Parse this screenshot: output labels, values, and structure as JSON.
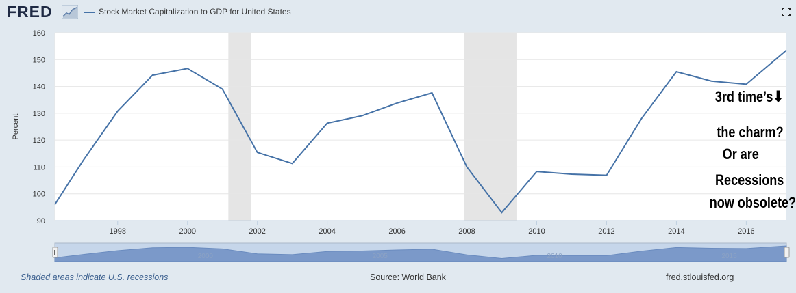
{
  "header": {
    "logo": "FRED",
    "logo_icon": "chart-line-icon",
    "legend_label": "Stock Market Capitalization to GDP for United States",
    "fullscreen_icon": "fullscreen-icon"
  },
  "colors": {
    "line": "#4572a7",
    "plot_bg": "#ffffff",
    "page_bg": "#e1e9f0",
    "recession": "#e5e5e5",
    "navigator_fill": "#6f8fc4"
  },
  "chart_data": {
    "type": "line",
    "ylabel": "Percent",
    "xlabel": "",
    "xlim": [
      1996.2,
      2017.15
    ],
    "ylim": [
      90,
      160
    ],
    "yticks": [
      90,
      100,
      110,
      120,
      130,
      140,
      150,
      160
    ],
    "xticks": [
      1998,
      2000,
      2002,
      2004,
      2006,
      2008,
      2010,
      2012,
      2014,
      2016
    ],
    "grid": true,
    "recessions": [
      [
        2001.17,
        2001.83
      ],
      [
        2007.92,
        2009.42
      ]
    ],
    "series": [
      {
        "x": [
          1996.2,
          1997,
          1998,
          1999,
          2000,
          2001,
          2002,
          2003,
          2004,
          2005,
          2006,
          2007,
          2008,
          2009,
          2010,
          2011,
          2012,
          2013,
          2014,
          2015,
          2016,
          2017.15
        ],
        "values": [
          96,
          112.2,
          130.8,
          144.2,
          146.7,
          139,
          115.4,
          111.3,
          126.3,
          129.1,
          133.8,
          137.6,
          110,
          93,
          108.3,
          107.3,
          106.9,
          128,
          145.5,
          142,
          140.8,
          153.5
        ]
      }
    ],
    "navigator_labels": [
      "2000",
      "2005",
      "2010",
      "2015"
    ]
  },
  "annotation": {
    "line1": "3rd  time’s",
    "arrow": "⬇",
    "line2": "the charm?",
    "line3": "Or are",
    "line4": "Recessions",
    "line5": "now obsolete?"
  },
  "footer": {
    "recession_note": "Shaded areas indicate U.S. recessions",
    "source": "Source: World Bank",
    "site": "fred.stlouisfed.org"
  }
}
